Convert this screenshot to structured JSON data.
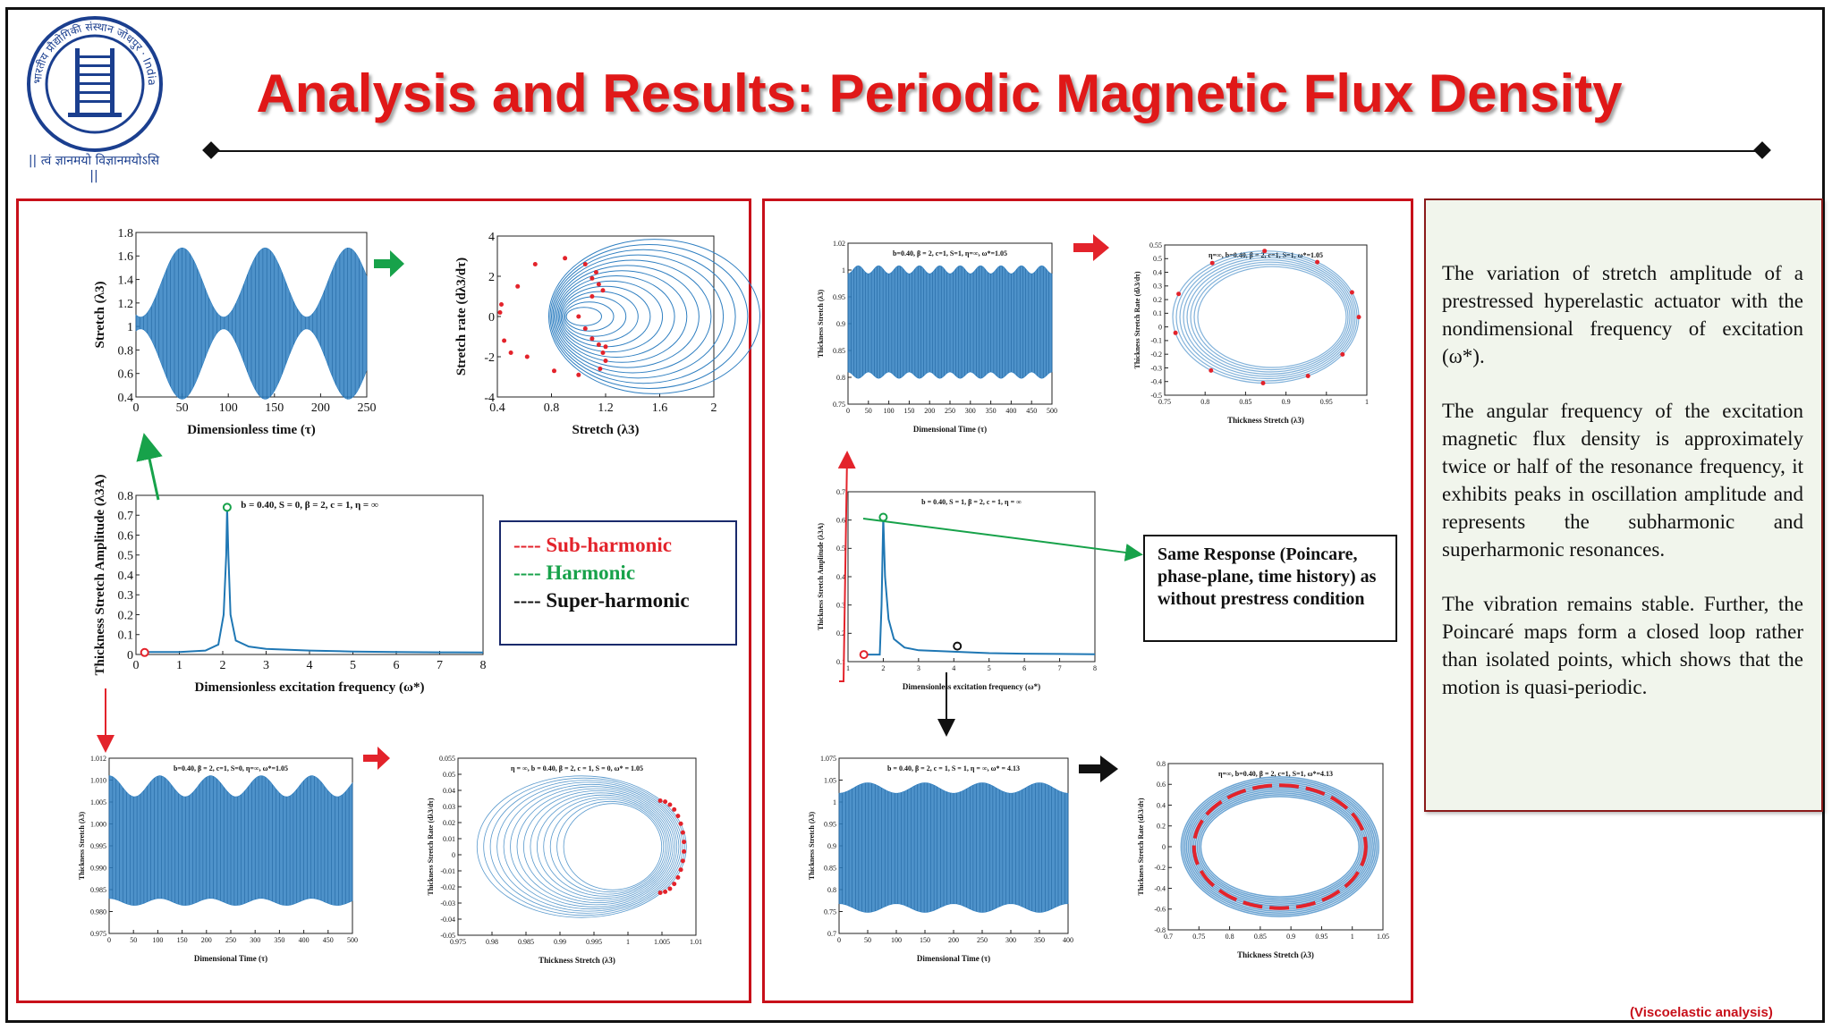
{
  "header": {
    "title": "Analysis and Results: Periodic Magnetic Flux Density",
    "logo": {
      "ring_text": "भारतीय प्रौद्योगिकी संस्थान जोधपुर · Indian Institute of Technology Jodhpur",
      "motto": "|| त्वं ज्ञानमयो विज्ञानमयोऽसि ||"
    }
  },
  "colors": {
    "accent": "#e01818",
    "panel_border": "#c8101a",
    "curve": "#2f7fc1",
    "poincare": "#e3232b",
    "harmonic": "#17a24a"
  },
  "legend": [
    {
      "text": "---- Sub-harmonic",
      "color": "#e3232b"
    },
    {
      "text": "---- Harmonic",
      "color": "#17a24a"
    },
    {
      "text": "---- Super-harmonic",
      "color": "#111111"
    }
  ],
  "note": "Same Response (Poincare, phase-plane, time history) as without prestress condition",
  "description": [
    "The variation of stretch amplitude of a prestressed hyperelastic actuator with the nondimensional frequency of excitation (ω*).",
    "The angular frequency of the excitation magnetic flux density is approximately twice or half of the resonance frequency, it exhibits peaks in oscillation amplitude and represents the subharmonic and superharmonic resonances.",
    "The vibration remains stable. Further, the Poincaré maps form a closed loop rather than isolated points, which shows that the motion is quasi-periodic."
  ],
  "footer": "(Viscoelastic analysis)",
  "chart_data": [
    {
      "id": "A",
      "type": "line",
      "xlabel": "Dimensionless time (τ)",
      "ylabel": "Stretch (λ3)",
      "xticks": [
        "0",
        "50",
        "100",
        "150",
        "200",
        "250"
      ],
      "yticks": [
        "0.4",
        "0.6",
        "0.8",
        "1",
        "1.2",
        "1.4",
        "1.6",
        "1.8"
      ],
      "xlim": [
        0,
        250
      ],
      "ylim": [
        0.4,
        1.8
      ],
      "envelope_peaks_at": [
        50,
        140,
        230
      ],
      "max": 1.62,
      "min": 0.37
    },
    {
      "id": "B",
      "type": "scatter",
      "xlabel": "Stretch (λ3)",
      "ylabel": "Stretch rate (dλ3/dτ)",
      "xticks": [
        "0.4",
        "0.8",
        "1.2",
        "1.6",
        "2"
      ],
      "yticks": [
        "-4",
        "-2",
        "0",
        "2",
        "4"
      ],
      "xlim": [
        0.4,
        2
      ],
      "ylim": [
        -4,
        4
      ]
    },
    {
      "id": "C",
      "type": "line",
      "title": "b = 0.40, S = 0, β = 2, c = 1, η = ∞",
      "xlabel": "Dimensionless excitation frequency (ω*)",
      "ylabel": "Thickness Stretch Amplitude (λ3A)",
      "xticks": [
        "0",
        "1",
        "2",
        "3",
        "4",
        "5",
        "6",
        "7",
        "8"
      ],
      "yticks": [
        "0",
        "0.1",
        "0.2",
        "0.3",
        "0.4",
        "0.5",
        "0.6",
        "0.7",
        "0.8"
      ],
      "xlim": [
        0,
        8
      ],
      "ylim": [
        0,
        0.8
      ],
      "x": [
        0.3,
        1.0,
        1.6,
        1.9,
        2.02,
        2.08,
        2.1,
        2.13,
        2.18,
        2.3,
        2.6,
        3,
        4,
        5,
        6,
        7,
        8
      ],
      "y": [
        0.012,
        0.012,
        0.02,
        0.05,
        0.2,
        0.5,
        0.74,
        0.5,
        0.2,
        0.07,
        0.04,
        0.028,
        0.02,
        0.015,
        0.012,
        0.011,
        0.01
      ],
      "markers": [
        {
          "x": 2.1,
          "y": 0.74,
          "series": "harmonic"
        },
        {
          "x": 0.2,
          "y": 0.01,
          "series": "sub-harmonic"
        }
      ]
    },
    {
      "id": "D",
      "type": "line",
      "title": "b=0.40, β = 2, c=1, S=0, η=∞, ω*=1.05",
      "xlabel": "Dimensional Time (τ)",
      "ylabel": "Thickness Stretch (λ3)",
      "xticks": [
        "0",
        "50",
        "100",
        "150",
        "200",
        "250",
        "300",
        "350",
        "400",
        "450",
        "500"
      ],
      "yticks": [
        "0.975",
        "0.980",
        "0.985",
        "0.990",
        "0.995",
        "1.000",
        "1.005",
        "1.010",
        "1.012"
      ],
      "xlim": [
        0,
        500
      ],
      "ylim": [
        0.975,
        1.012
      ]
    },
    {
      "id": "E",
      "type": "scatter",
      "title": "η = ∞, b = 0.40, β = 2, c = 1, S = 0, ω* = 1.05",
      "xlabel": "Thickness Stretch (λ3)",
      "ylabel": "Thickness Stretch Rate (dλ3/dτ)",
      "xticks": [
        "0.975",
        "0.98",
        "0.985",
        "0.99",
        "0.995",
        "1",
        "1.005",
        "1.01"
      ],
      "yticks": [
        "-0.05",
        "-0.04",
        "-0.03",
        "-0.02",
        "-0.01",
        "0",
        "0.01",
        "0.02",
        "0.03",
        "0.04",
        "0.05",
        "0.055"
      ],
      "xlim": [
        0.975,
        1.01
      ],
      "ylim": [
        -0.05,
        0.055
      ]
    },
    {
      "id": "F",
      "type": "line",
      "title": "b=0.40, β = 2, c=1, S=1, η=∞, ω*=1.05",
      "xlabel": "Dimensional Time (τ)",
      "ylabel": "Thickness Stretch (λ3)",
      "xticks": [
        "0",
        "50",
        "100",
        "150",
        "200",
        "250",
        "300",
        "350",
        "400",
        "450",
        "500"
      ],
      "yticks": [
        "0.75",
        "0.8",
        "0.85",
        "0.9",
        "0.95",
        "1",
        "1.02"
      ],
      "xlim": [
        0,
        500
      ],
      "ylim": [
        0.75,
        1.02
      ]
    },
    {
      "id": "G",
      "type": "scatter",
      "title": "η=∞, b=0.40, β = 2, c=1, S=1, ω*=1.05",
      "xlabel": "Thickness Stretch (λ3)",
      "ylabel": "Thickness Stretch Rate (dλ3/dτ)",
      "xticks": [
        "0.75",
        "0.8",
        "0.85",
        "0.9",
        "0.95",
        "1"
      ],
      "yticks": [
        "-0.5",
        "-0.4",
        "-0.3",
        "-0.2",
        "-0.1",
        "0",
        "0.1",
        "0.2",
        "0.3",
        "0.4",
        "0.5",
        "0.55"
      ],
      "xlim": [
        0.75,
        1
      ],
      "ylim": [
        -0.5,
        0.55
      ]
    },
    {
      "id": "H",
      "type": "line",
      "title": "b = 0.40, S = 1, β = 2, c = 1, η = ∞",
      "xlabel": "Dimensionless excitation frequency (ω*)",
      "ylabel": "Thickness Stretch Amplitude (λ3A)",
      "xticks": [
        "1",
        "2",
        "3",
        "4",
        "5",
        "6",
        "7",
        "8"
      ],
      "yticks": [
        "0.1",
        "0.2",
        "0.3",
        "0.4",
        "0.5",
        "0.6",
        "0.7"
      ],
      "xlim": [
        1,
        8
      ],
      "ylim": [
        0.1,
        0.7
      ],
      "x": [
        1.5,
        1.9,
        1.95,
        2.0,
        2.05,
        2.15,
        2.3,
        2.6,
        3,
        4,
        5,
        6,
        7,
        8
      ],
      "y": [
        0.125,
        0.125,
        0.3,
        0.61,
        0.4,
        0.25,
        0.18,
        0.15,
        0.14,
        0.135,
        0.13,
        0.128,
        0.127,
        0.126
      ],
      "markers": [
        {
          "x": 2.0,
          "y": 0.61,
          "series": "harmonic"
        },
        {
          "x": 1.45,
          "y": 0.125,
          "series": "sub-harmonic"
        },
        {
          "x": 4.1,
          "y": 0.155,
          "series": "super-harmonic"
        }
      ]
    },
    {
      "id": "I",
      "type": "line",
      "title": "b = 0.40, β = 2, c = 1, S = 1, η = ∞, ω* = 4.13",
      "xlabel": "Dimensional Time (τ)",
      "ylabel": "Thickness Stretch (λ3)",
      "xticks": [
        "0",
        "50",
        "100",
        "150",
        "200",
        "250",
        "300",
        "350",
        "400"
      ],
      "yticks": [
        "0.7",
        "0.75",
        "0.8",
        "0.85",
        "0.9",
        "0.95",
        "1",
        "1.05",
        "1.075"
      ],
      "xlim": [
        0,
        400
      ],
      "ylim": [
        0.7,
        1.075
      ]
    },
    {
      "id": "J",
      "type": "scatter",
      "title": "η=∞, b=0.40, β = 2, c=1, S=1, ω*=4.13",
      "xlabel": "Thickness Stretch (λ3)",
      "ylabel": "Thickness Stretch Rate (dλ3/dτ)",
      "xticks": [
        "0.7",
        "0.75",
        "0.8",
        "0.85",
        "0.9",
        "0.95",
        "1",
        "1.05"
      ],
      "yticks": [
        "-0.8",
        "-0.6",
        "-0.4",
        "-0.2",
        "0",
        "0.2",
        "0.4",
        "0.6",
        "0.8"
      ],
      "xlim": [
        0.7,
        1.05
      ],
      "ylim": [
        -0.8,
        0.8
      ]
    }
  ]
}
